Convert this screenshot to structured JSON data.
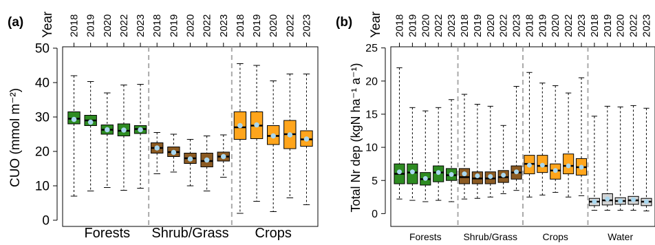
{
  "chart_data": [
    {
      "type": "box",
      "panel_label": "(a)",
      "ylabel": "CUO (mmol m⁻²)",
      "ylim": [
        0,
        52
      ],
      "yticks": [
        "0",
        "10",
        "20",
        "30",
        "40",
        "50"
      ],
      "ytick_values": [
        0,
        10,
        20,
        30,
        40,
        50
      ],
      "year_axis_label": "Year",
      "years": [
        "2018",
        "2019",
        "2020",
        "2022",
        "2023"
      ],
      "groups": [
        {
          "name": "Forests",
          "color": "#2e8b22",
          "boxes": [
            {
              "year": "2018",
              "min": 7,
              "q1": 28,
              "median": 29.5,
              "q3": 31.5,
              "max": 42,
              "mean": 29.3
            },
            {
              "year": "2019",
              "min": 8.5,
              "q1": 27.5,
              "median": 29,
              "q3": 30.5,
              "max": 40.3,
              "mean": 28.5
            },
            {
              "year": "2020",
              "min": 9.5,
              "q1": 25,
              "median": 26.3,
              "q3": 27.7,
              "max": 37,
              "mean": 26.3
            },
            {
              "year": "2022",
              "min": 8.7,
              "q1": 24.5,
              "median": 26,
              "q3": 28,
              "max": 39.3,
              "mean": 26.2
            },
            {
              "year": "2023",
              "min": 9.3,
              "q1": 25.2,
              "median": 26.5,
              "q3": 27.5,
              "max": 39.5,
              "mean": 26.3
            }
          ]
        },
        {
          "name": "Shrub/Grass",
          "color": "#8b5a22",
          "boxes": [
            {
              "year": "2018",
              "min": 13.5,
              "q1": 19.5,
              "median": 21,
              "q3": 22.5,
              "max": 25.5,
              "mean": 21
            },
            {
              "year": "2019",
              "min": 14,
              "q1": 18.5,
              "median": 19.8,
              "q3": 21.3,
              "max": 25,
              "mean": 19.7
            },
            {
              "year": "2020",
              "min": 10,
              "q1": 16.5,
              "median": 18,
              "q3": 19.5,
              "max": 23.5,
              "mean": 17.8
            },
            {
              "year": "2022",
              "min": 8.5,
              "q1": 15.5,
              "median": 17.2,
              "q3": 19.5,
              "max": 24.5,
              "mean": 17.5
            },
            {
              "year": "2023",
              "min": 12.5,
              "q1": 17.2,
              "median": 18.5,
              "q3": 19.8,
              "max": 24.8,
              "mean": 18.5
            }
          ]
        },
        {
          "name": "Crops",
          "color": "#ffa51c",
          "boxes": [
            {
              "year": "2018",
              "min": 2,
              "q1": 23.5,
              "median": 27,
              "q3": 31.5,
              "max": 45.5,
              "mean": 27.5
            },
            {
              "year": "2019",
              "min": 5.5,
              "q1": 23.7,
              "median": 27.5,
              "q3": 31.5,
              "max": 45,
              "mean": 27.7
            },
            {
              "year": "2020",
              "min": 2.5,
              "q1": 22,
              "median": 24.5,
              "q3": 27.5,
              "max": 40.5,
              "mean": 24.5
            },
            {
              "year": "2022",
              "min": 6.5,
              "q1": 20.8,
              "median": 25,
              "q3": 29,
              "max": 42.5,
              "mean": 24.8
            },
            {
              "year": "2023",
              "min": 4.5,
              "q1": 21.5,
              "median": 23.5,
              "q3": 26,
              "max": 42.5,
              "mean": 23.6
            }
          ]
        }
      ]
    },
    {
      "type": "box",
      "panel_label": "(b)",
      "ylabel": "Total Nr dep (kgN ha⁻¹ a⁻¹)",
      "ylim": [
        -1,
        26
      ],
      "yticks": [
        "0",
        "5",
        "10",
        "15",
        "20",
        "25"
      ],
      "ytick_values": [
        0,
        5,
        10,
        15,
        20,
        25
      ],
      "year_axis_label": "Year",
      "years": [
        "2018",
        "2019",
        "2020",
        "2022",
        "2023"
      ],
      "groups": [
        {
          "name": "Forests",
          "color": "#2e8b22",
          "boxes": [
            {
              "year": "2018",
              "min": 2.2,
              "q1": 4.5,
              "median": 6,
              "q3": 7.5,
              "max": 22,
              "mean": 6.3
            },
            {
              "year": "2019",
              "min": 2,
              "q1": 4.5,
              "median": 6.2,
              "q3": 7.5,
              "max": 16,
              "mean": 6.3
            },
            {
              "year": "2020",
              "min": 1.8,
              "q1": 4.3,
              "median": 5.2,
              "q3": 6.2,
              "max": 15.5,
              "mean": 5.3
            },
            {
              "year": "2022",
              "min": 2,
              "q1": 4.8,
              "median": 6.2,
              "q3": 7.2,
              "max": 16,
              "mean": 6.2
            },
            {
              "year": "2023",
              "min": 1.8,
              "q1": 5,
              "median": 5.8,
              "q3": 6.8,
              "max": 17.2,
              "mean": 5.9
            }
          ]
        },
        {
          "name": "Shrub/Grass",
          "color": "#8b5a22",
          "boxes": [
            {
              "year": "2018",
              "min": 2.2,
              "q1": 4.5,
              "median": 5.5,
              "q3": 6.8,
              "max": 18,
              "mean": 6
            },
            {
              "year": "2019",
              "min": 2.3,
              "q1": 4.5,
              "median": 5.3,
              "q3": 6.3,
              "max": 16.5,
              "mean": 5.7
            },
            {
              "year": "2020",
              "min": 2.5,
              "q1": 4.5,
              "median": 5.3,
              "q3": 6.3,
              "max": 16.2,
              "mean": 5.6
            },
            {
              "year": "2022",
              "min": 3,
              "q1": 4.7,
              "median": 5.5,
              "q3": 6.5,
              "max": 13.3,
              "mean": 5.8
            },
            {
              "year": "2023",
              "min": 3.5,
              "q1": 5.2,
              "median": 6.2,
              "q3": 7.2,
              "max": 19.2,
              "mean": 6.3
            }
          ]
        },
        {
          "name": "Crops",
          "color": "#ffa51c",
          "boxes": [
            {
              "year": "2018",
              "min": 2.5,
              "q1": 6,
              "median": 7.5,
              "q3": 8.8,
              "max": 21.3,
              "mean": 7.3
            },
            {
              "year": "2019",
              "min": 2.8,
              "q1": 6.2,
              "median": 7.2,
              "q3": 8.8,
              "max": 19.7,
              "mean": 7.3
            },
            {
              "year": "2020",
              "min": 3.2,
              "q1": 5.2,
              "median": 6.5,
              "q3": 7.5,
              "max": 19.3,
              "mean": 6.5
            },
            {
              "year": "2022",
              "min": 2.5,
              "q1": 6,
              "median": 7.2,
              "q3": 9,
              "max": 18.2,
              "mean": 7.2
            },
            {
              "year": "2023",
              "min": 2.7,
              "q1": 5.8,
              "median": 7,
              "q3": 8.3,
              "max": 20.5,
              "mean": 7
            }
          ]
        },
        {
          "name": "Water",
          "color": "#d3d3d3",
          "boxes": [
            {
              "year": "2018",
              "min": 0.5,
              "q1": 1.2,
              "median": 1.8,
              "q3": 2.3,
              "max": 14.7,
              "mean": 1.8
            },
            {
              "year": "2019",
              "min": 0.5,
              "q1": 1.3,
              "median": 2,
              "q3": 3,
              "max": 16.2,
              "mean": 2.2
            },
            {
              "year": "2020",
              "min": 0.5,
              "q1": 1.4,
              "median": 1.9,
              "q3": 2.4,
              "max": 16.1,
              "mean": 1.9
            },
            {
              "year": "2022",
              "min": 0.5,
              "q1": 1.4,
              "median": 2,
              "q3": 2.6,
              "max": 16.3,
              "mean": 2.1
            },
            {
              "year": "2023",
              "min": 0.4,
              "q1": 1.2,
              "median": 1.8,
              "q3": 2.3,
              "max": 15.9,
              "mean": 1.8
            }
          ]
        }
      ]
    }
  ],
  "colors": {
    "mean_marker": "#a9d8f0",
    "separator": "#aaaaaa",
    "axis": "#000000"
  }
}
